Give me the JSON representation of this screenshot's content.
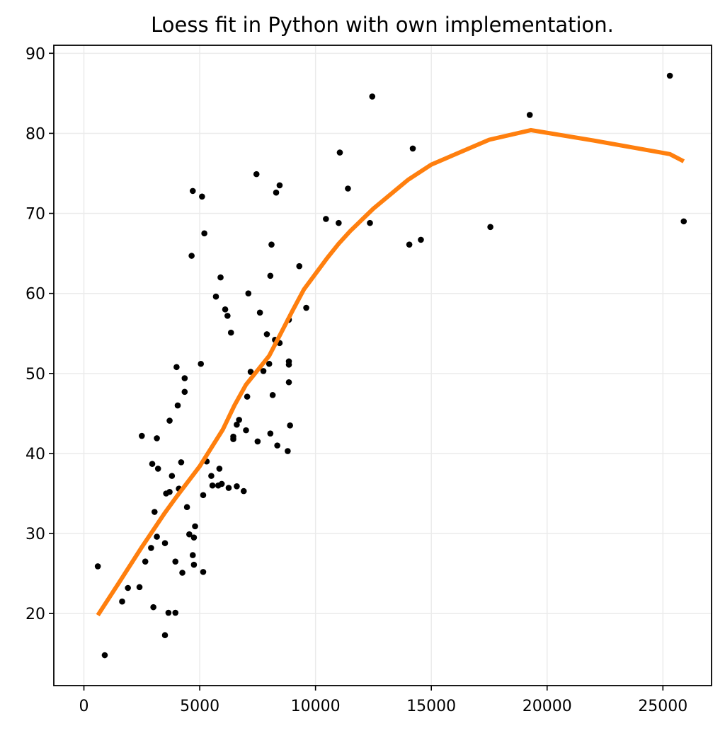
{
  "chart_data": {
    "type": "scatter",
    "title": "Loess fit in Python with own implementation.",
    "xlabel": "",
    "ylabel": "",
    "xlim": [
      -1300,
      27100
    ],
    "ylim": [
      11,
      91
    ],
    "xticks": [
      0,
      5000,
      10000,
      15000,
      20000,
      25000
    ],
    "yticks": [
      20,
      30,
      40,
      50,
      60,
      70,
      80,
      90
    ],
    "grid": true,
    "colors": {
      "points": "#000000",
      "fit": "#ff7f0e"
    },
    "scatter_points": [
      [
        600,
        25.9
      ],
      [
        900,
        14.8
      ],
      [
        1650,
        21.5
      ],
      [
        1900,
        23.2
      ],
      [
        2400,
        23.3
      ],
      [
        2500,
        42.2
      ],
      [
        2650,
        26.5
      ],
      [
        2900,
        28.2
      ],
      [
        2950,
        38.7
      ],
      [
        3000,
        20.8
      ],
      [
        3050,
        32.7
      ],
      [
        3150,
        29.6
      ],
      [
        3150,
        41.9
      ],
      [
        3200,
        38.1
      ],
      [
        3500,
        17.3
      ],
      [
        3500,
        28.8
      ],
      [
        3550,
        35.0
      ],
      [
        3650,
        20.1
      ],
      [
        3700,
        35.2
      ],
      [
        3700,
        44.1
      ],
      [
        3800,
        37.2
      ],
      [
        3950,
        26.5
      ],
      [
        3950,
        20.1
      ],
      [
        4000,
        50.8
      ],
      [
        4050,
        46.0
      ],
      [
        4100,
        35.6
      ],
      [
        4200,
        38.9
      ],
      [
        4250,
        25.1
      ],
      [
        4350,
        49.4
      ],
      [
        4350,
        47.7
      ],
      [
        4450,
        33.3
      ],
      [
        4550,
        29.9
      ],
      [
        4650,
        64.7
      ],
      [
        4700,
        27.3
      ],
      [
        4700,
        72.8
      ],
      [
        4750,
        29.5
      ],
      [
        4750,
        26.1
      ],
      [
        4800,
        30.9
      ],
      [
        5050,
        51.2
      ],
      [
        5100,
        72.1
      ],
      [
        5150,
        25.2
      ],
      [
        5150,
        34.8
      ],
      [
        5200,
        67.5
      ],
      [
        5300,
        39.0
      ],
      [
        5500,
        37.2
      ],
      [
        5550,
        36.0
      ],
      [
        5700,
        59.6
      ],
      [
        5800,
        36.0
      ],
      [
        5850,
        38.1
      ],
      [
        5900,
        62.0
      ],
      [
        5950,
        36.2
      ],
      [
        6100,
        58.0
      ],
      [
        6200,
        57.2
      ],
      [
        6250,
        35.7
      ],
      [
        6350,
        55.1
      ],
      [
        6450,
        42.1
      ],
      [
        6450,
        41.8
      ],
      [
        6600,
        35.9
      ],
      [
        6600,
        43.6
      ],
      [
        6700,
        44.2
      ],
      [
        6900,
        35.3
      ],
      [
        7000,
        42.9
      ],
      [
        7050,
        47.1
      ],
      [
        7100,
        60.0
      ],
      [
        7200,
        50.2
      ],
      [
        7450,
        74.9
      ],
      [
        7500,
        41.5
      ],
      [
        7600,
        57.6
      ],
      [
        7750,
        50.3
      ],
      [
        7900,
        54.9
      ],
      [
        8000,
        51.2
      ],
      [
        8050,
        62.2
      ],
      [
        8050,
        42.5
      ],
      [
        8100,
        66.1
      ],
      [
        8150,
        47.3
      ],
      [
        8250,
        54.2
      ],
      [
        8300,
        72.6
      ],
      [
        8350,
        41.0
      ],
      [
        8450,
        73.5
      ],
      [
        8450,
        53.8
      ],
      [
        8800,
        40.3
      ],
      [
        8850,
        56.7
      ],
      [
        8850,
        51.5
      ],
      [
        8850,
        51.1
      ],
      [
        8850,
        48.9
      ],
      [
        8900,
        43.5
      ],
      [
        9300,
        63.4
      ],
      [
        9600,
        58.2
      ],
      [
        10450,
        69.3
      ],
      [
        11000,
        68.8
      ],
      [
        11050,
        77.6
      ],
      [
        11400,
        73.1
      ],
      [
        12350,
        68.8
      ],
      [
        12450,
        84.6
      ],
      [
        14050,
        66.1
      ],
      [
        14200,
        78.1
      ],
      [
        14550,
        66.7
      ],
      [
        17550,
        68.3
      ],
      [
        19250,
        82.3
      ],
      [
        25300,
        87.2
      ],
      [
        25900,
        69.0
      ]
    ],
    "series": [
      {
        "values": [
          [
            600,
            19.8
          ],
          [
            1500,
            23.8
          ],
          [
            2500,
            28.3
          ],
          [
            3500,
            32.6
          ],
          [
            4000,
            34.6
          ],
          [
            5000,
            38.4
          ],
          [
            6000,
            43.0
          ],
          [
            6500,
            46.0
          ],
          [
            7000,
            48.6
          ],
          [
            7500,
            50.4
          ],
          [
            8000,
            52.2
          ],
          [
            8500,
            55.0
          ],
          [
            9000,
            57.8
          ],
          [
            9500,
            60.5
          ],
          [
            10500,
            64.4
          ],
          [
            11000,
            66.2
          ],
          [
            11500,
            67.8
          ],
          [
            12500,
            70.6
          ],
          [
            14000,
            74.2
          ],
          [
            15000,
            76.1
          ],
          [
            17500,
            79.2
          ],
          [
            19300,
            80.4
          ],
          [
            22000,
            79.1
          ],
          [
            25300,
            77.4
          ],
          [
            25900,
            76.5
          ]
        ]
      }
    ]
  }
}
